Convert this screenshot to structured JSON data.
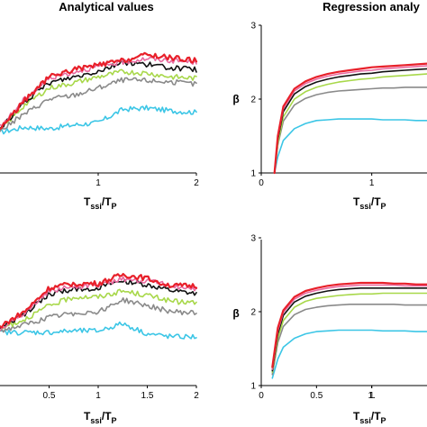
{
  "titles": {
    "left": "Analytical values",
    "right": "Regression analy"
  },
  "axis_labels": {
    "x_main": "T",
    "x_sub": "ssi",
    "x_over": "/T",
    "x_p": "P",
    "y": "β"
  },
  "colors": {
    "red": "#e8202a",
    "pink": "#e86aa0",
    "orange": "#f07a2a",
    "black": "#111111",
    "green": "#a8d84a",
    "gray": "#8a8a8a",
    "cyan": "#3cc6e6"
  },
  "chart_data": [
    {
      "id": "top-left",
      "type": "line",
      "title": "Analytical values",
      "xlabel": "Tssi/TP",
      "xlim": [
        0.0,
        2.0
      ],
      "ylim": [
        1.0,
        3.0
      ],
      "x_ticks": [
        "1",
        "2"
      ],
      "y_ticks": [],
      "x": [
        0.0,
        0.25,
        0.5,
        0.75,
        1.0,
        1.25,
        1.5,
        1.75,
        2.0
      ],
      "series": [
        {
          "color": "red",
          "values": [
            1.6,
            1.98,
            2.3,
            2.4,
            2.46,
            2.52,
            2.6,
            2.56,
            2.52
          ]
        },
        {
          "color": "pink",
          "values": [
            1.62,
            2.0,
            2.28,
            2.37,
            2.44,
            2.5,
            2.55,
            2.52,
            2.5
          ]
        },
        {
          "color": "black",
          "values": [
            1.6,
            1.96,
            2.22,
            2.3,
            2.38,
            2.5,
            2.47,
            2.42,
            2.4
          ]
        },
        {
          "color": "green",
          "values": [
            1.58,
            1.92,
            2.15,
            2.22,
            2.3,
            2.37,
            2.35,
            2.3,
            2.28
          ]
        },
        {
          "color": "gray",
          "values": [
            1.57,
            1.8,
            2.0,
            2.05,
            2.15,
            2.26,
            2.25,
            2.23,
            2.2
          ]
        },
        {
          "color": "cyan",
          "values": [
            1.55,
            1.62,
            1.6,
            1.65,
            1.68,
            1.86,
            1.88,
            1.84,
            1.82
          ]
        }
      ]
    },
    {
      "id": "top-right",
      "type": "line",
      "title": "Regression analy",
      "xlabel": "Tssi/TP",
      "ylabel": "β",
      "xlim": [
        0.0,
        1.5
      ],
      "ylim": [
        1.0,
        3.0
      ],
      "x_ticks": [
        "0",
        "1"
      ],
      "y_ticks": [
        "1",
        "2",
        "3"
      ],
      "x": [
        0.12,
        0.15,
        0.2,
        0.3,
        0.4,
        0.5,
        0.6,
        0.7,
        0.8,
        0.9,
        1.0,
        1.1,
        1.2,
        1.3,
        1.4,
        1.5
      ],
      "series": [
        {
          "color": "red",
          "values": [
            1.0,
            1.5,
            1.9,
            2.14,
            2.24,
            2.3,
            2.34,
            2.37,
            2.39,
            2.41,
            2.43,
            2.44,
            2.45,
            2.46,
            2.47,
            2.48
          ]
        },
        {
          "color": "pink",
          "values": [
            1.0,
            1.48,
            1.87,
            2.11,
            2.21,
            2.27,
            2.31,
            2.34,
            2.36,
            2.38,
            2.39,
            2.41,
            2.42,
            2.43,
            2.44,
            2.45
          ]
        },
        {
          "color": "black",
          "values": [
            1.0,
            1.45,
            1.83,
            2.07,
            2.17,
            2.23,
            2.27,
            2.3,
            2.32,
            2.34,
            2.35,
            2.37,
            2.38,
            2.39,
            2.4,
            2.41
          ]
        },
        {
          "color": "green",
          "values": [
            1.0,
            1.4,
            1.76,
            2.0,
            2.1,
            2.16,
            2.2,
            2.23,
            2.25,
            2.27,
            2.28,
            2.3,
            2.31,
            2.32,
            2.33,
            2.34
          ]
        },
        {
          "color": "gray",
          "values": [
            1.0,
            1.38,
            1.7,
            1.92,
            2.01,
            2.06,
            2.09,
            2.11,
            2.12,
            2.13,
            2.14,
            2.15,
            2.15,
            2.16,
            2.16,
            2.16
          ]
        },
        {
          "color": "cyan",
          "values": [
            1.0,
            1.22,
            1.44,
            1.6,
            1.67,
            1.71,
            1.72,
            1.73,
            1.73,
            1.73,
            1.73,
            1.72,
            1.72,
            1.72,
            1.71,
            1.71
          ]
        }
      ]
    },
    {
      "id": "bottom-left",
      "type": "line",
      "xlabel": "Tssi/TP",
      "xlim": [
        0.0,
        2.0
      ],
      "ylim": [
        1.0,
        3.0
      ],
      "x_ticks": [
        "0.5",
        "1",
        "1.5",
        "2"
      ],
      "y_ticks": [],
      "x": [
        0.0,
        0.25,
        0.5,
        0.75,
        1.0,
        1.25,
        1.5,
        1.75,
        2.0
      ],
      "series": [
        {
          "color": "red",
          "values": [
            1.8,
            2.0,
            2.32,
            2.38,
            2.38,
            2.5,
            2.45,
            2.35,
            2.35
          ]
        },
        {
          "color": "pink",
          "values": [
            1.78,
            1.98,
            2.28,
            2.34,
            2.36,
            2.44,
            2.42,
            2.35,
            2.3
          ]
        },
        {
          "color": "black",
          "values": [
            1.78,
            1.96,
            2.24,
            2.3,
            2.32,
            2.42,
            2.36,
            2.28,
            2.24
          ]
        },
        {
          "color": "green",
          "values": [
            1.76,
            1.9,
            2.08,
            2.2,
            2.2,
            2.28,
            2.22,
            2.14,
            2.12
          ]
        },
        {
          "color": "gray",
          "values": [
            1.74,
            1.82,
            1.92,
            1.98,
            2.0,
            2.16,
            2.08,
            2.0,
            1.98
          ]
        },
        {
          "color": "cyan",
          "values": [
            1.72,
            1.72,
            1.72,
            1.74,
            1.74,
            1.84,
            1.7,
            1.66,
            1.66
          ]
        }
      ]
    },
    {
      "id": "bottom-right",
      "type": "line",
      "xlabel": "Tssi/TP",
      "ylabel": "β",
      "xlim": [
        0.0,
        1.5
      ],
      "ylim": [
        1.0,
        3.0
      ],
      "x_ticks": [
        "0",
        "0.5",
        "1",
        "1."
      ],
      "y_ticks": [
        "1",
        "2",
        "3"
      ],
      "x": [
        0.1,
        0.15,
        0.2,
        0.3,
        0.4,
        0.5,
        0.6,
        0.7,
        0.8,
        0.9,
        1.0,
        1.1,
        1.2,
        1.3,
        1.4,
        1.5
      ],
      "series": [
        {
          "color": "red",
          "values": [
            1.25,
            1.78,
            2.02,
            2.2,
            2.28,
            2.32,
            2.35,
            2.37,
            2.38,
            2.39,
            2.39,
            2.39,
            2.38,
            2.38,
            2.37,
            2.37
          ]
        },
        {
          "color": "pink",
          "values": [
            1.22,
            1.74,
            1.99,
            2.17,
            2.25,
            2.29,
            2.32,
            2.34,
            2.35,
            2.36,
            2.36,
            2.36,
            2.36,
            2.35,
            2.35,
            2.35
          ]
        },
        {
          "color": "black",
          "values": [
            1.2,
            1.7,
            1.95,
            2.13,
            2.21,
            2.25,
            2.28,
            2.3,
            2.31,
            2.32,
            2.32,
            2.32,
            2.32,
            2.32,
            2.32,
            2.32
          ]
        },
        {
          "color": "green",
          "values": [
            1.18,
            1.64,
            1.88,
            2.06,
            2.14,
            2.18,
            2.2,
            2.22,
            2.23,
            2.24,
            2.24,
            2.25,
            2.25,
            2.25,
            2.25,
            2.25
          ]
        },
        {
          "color": "gray",
          "values": [
            1.15,
            1.58,
            1.8,
            1.96,
            2.03,
            2.06,
            2.08,
            2.09,
            2.1,
            2.1,
            2.1,
            2.1,
            2.1,
            2.09,
            2.09,
            2.09
          ]
        },
        {
          "color": "cyan",
          "values": [
            1.1,
            1.36,
            1.52,
            1.64,
            1.7,
            1.73,
            1.74,
            1.75,
            1.75,
            1.75,
            1.75,
            1.74,
            1.74,
            1.74,
            1.73,
            1.73
          ]
        }
      ]
    }
  ]
}
